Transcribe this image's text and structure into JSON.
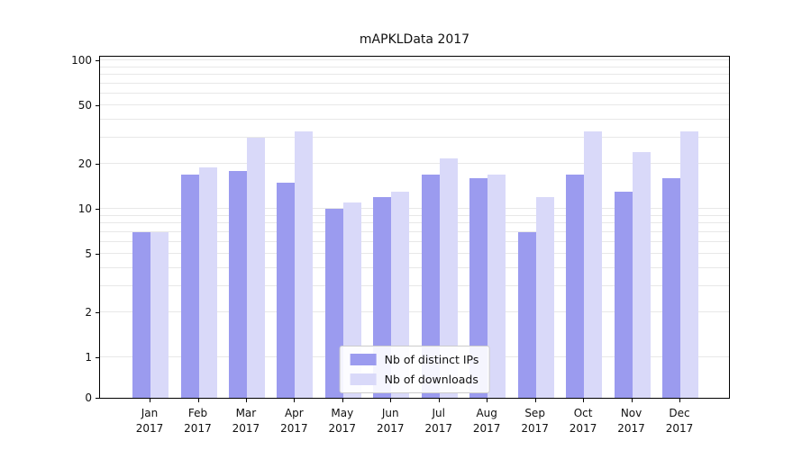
{
  "chart_data": {
    "type": "bar",
    "title": "mAPKLData 2017",
    "yscale": "symlog",
    "ylim": [
      0,
      110
    ],
    "grid": "on",
    "legend_position": "lower center",
    "categories": [
      "Jan 2017",
      "Feb 2017",
      "Mar 2017",
      "Apr 2017",
      "May 2017",
      "Jun 2017",
      "Jul 2017",
      "Aug 2017",
      "Sep 2017",
      "Oct 2017",
      "Nov 2017",
      "Dec 2017"
    ],
    "yticks": [
      0,
      1,
      2,
      5,
      10,
      20,
      50,
      100
    ],
    "gridlines": [
      1,
      2,
      3,
      4,
      5,
      6,
      7,
      8,
      9,
      10,
      20,
      30,
      40,
      50,
      60,
      70,
      80,
      90,
      100
    ],
    "series": [
      {
        "name": "Nb of distinct IPs",
        "color": "#9b9bef",
        "values": [
          7,
          17,
          18,
          15,
          10,
          12,
          17,
          16,
          7,
          17,
          13,
          16
        ]
      },
      {
        "name": "Nb of downloads",
        "color": "#d9d9f9",
        "values": [
          7,
          19,
          30,
          33,
          11,
          13,
          22,
          17,
          12,
          33,
          24,
          33
        ]
      }
    ]
  }
}
